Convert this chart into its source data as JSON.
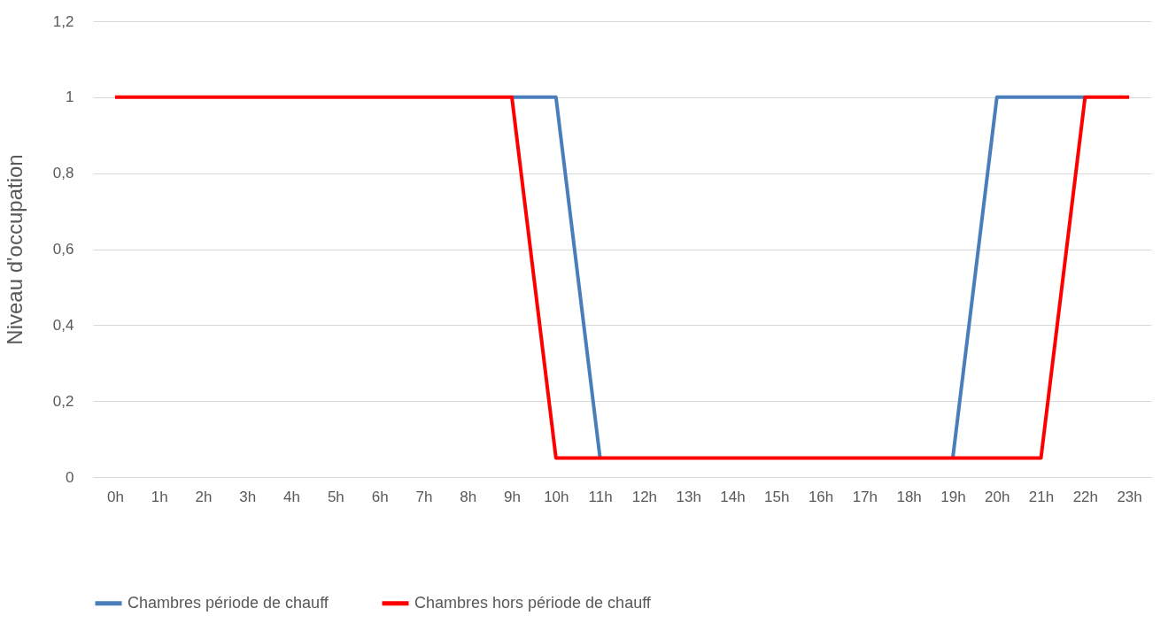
{
  "chart_data": {
    "type": "line",
    "ylabel": "Niveau d'occupation",
    "categories": [
      "0h",
      "1h",
      "2h",
      "3h",
      "4h",
      "5h",
      "6h",
      "7h",
      "8h",
      "9h",
      "10h",
      "11h",
      "12h",
      "13h",
      "14h",
      "15h",
      "16h",
      "17h",
      "18h",
      "19h",
      "20h",
      "21h",
      "22h",
      "23h"
    ],
    "series": [
      {
        "name": "Chambres période de chauff",
        "color": "#4a7ebb",
        "values": [
          null,
          null,
          null,
          null,
          null,
          null,
          null,
          null,
          null,
          1,
          1,
          0.05,
          null,
          null,
          null,
          null,
          null,
          null,
          null,
          0.05,
          1,
          1,
          1,
          null
        ]
      },
      {
        "name": "Chambres hors période de chauff",
        "color": "#ff0000",
        "values": [
          1,
          1,
          1,
          1,
          1,
          1,
          1,
          1,
          1,
          1,
          0.05,
          0.05,
          0.05,
          0.05,
          0.05,
          0.05,
          0.05,
          0.05,
          0.05,
          0.05,
          0.05,
          0.05,
          1,
          1
        ]
      }
    ],
    "ylim": [
      0,
      1.2
    ],
    "yticks": [
      0,
      {
        "value": 0.2,
        "label": "0,2"
      },
      {
        "value": 0.4,
        "label": "0,4"
      },
      {
        "value": 0.6,
        "label": "0,6"
      },
      {
        "value": 0.8,
        "label": "0,8"
      },
      1,
      {
        "value": 1.2,
        "label": "1,2"
      }
    ],
    "grid": "y",
    "legend": "bottom",
    "marker": "none",
    "line_style": "solid"
  }
}
